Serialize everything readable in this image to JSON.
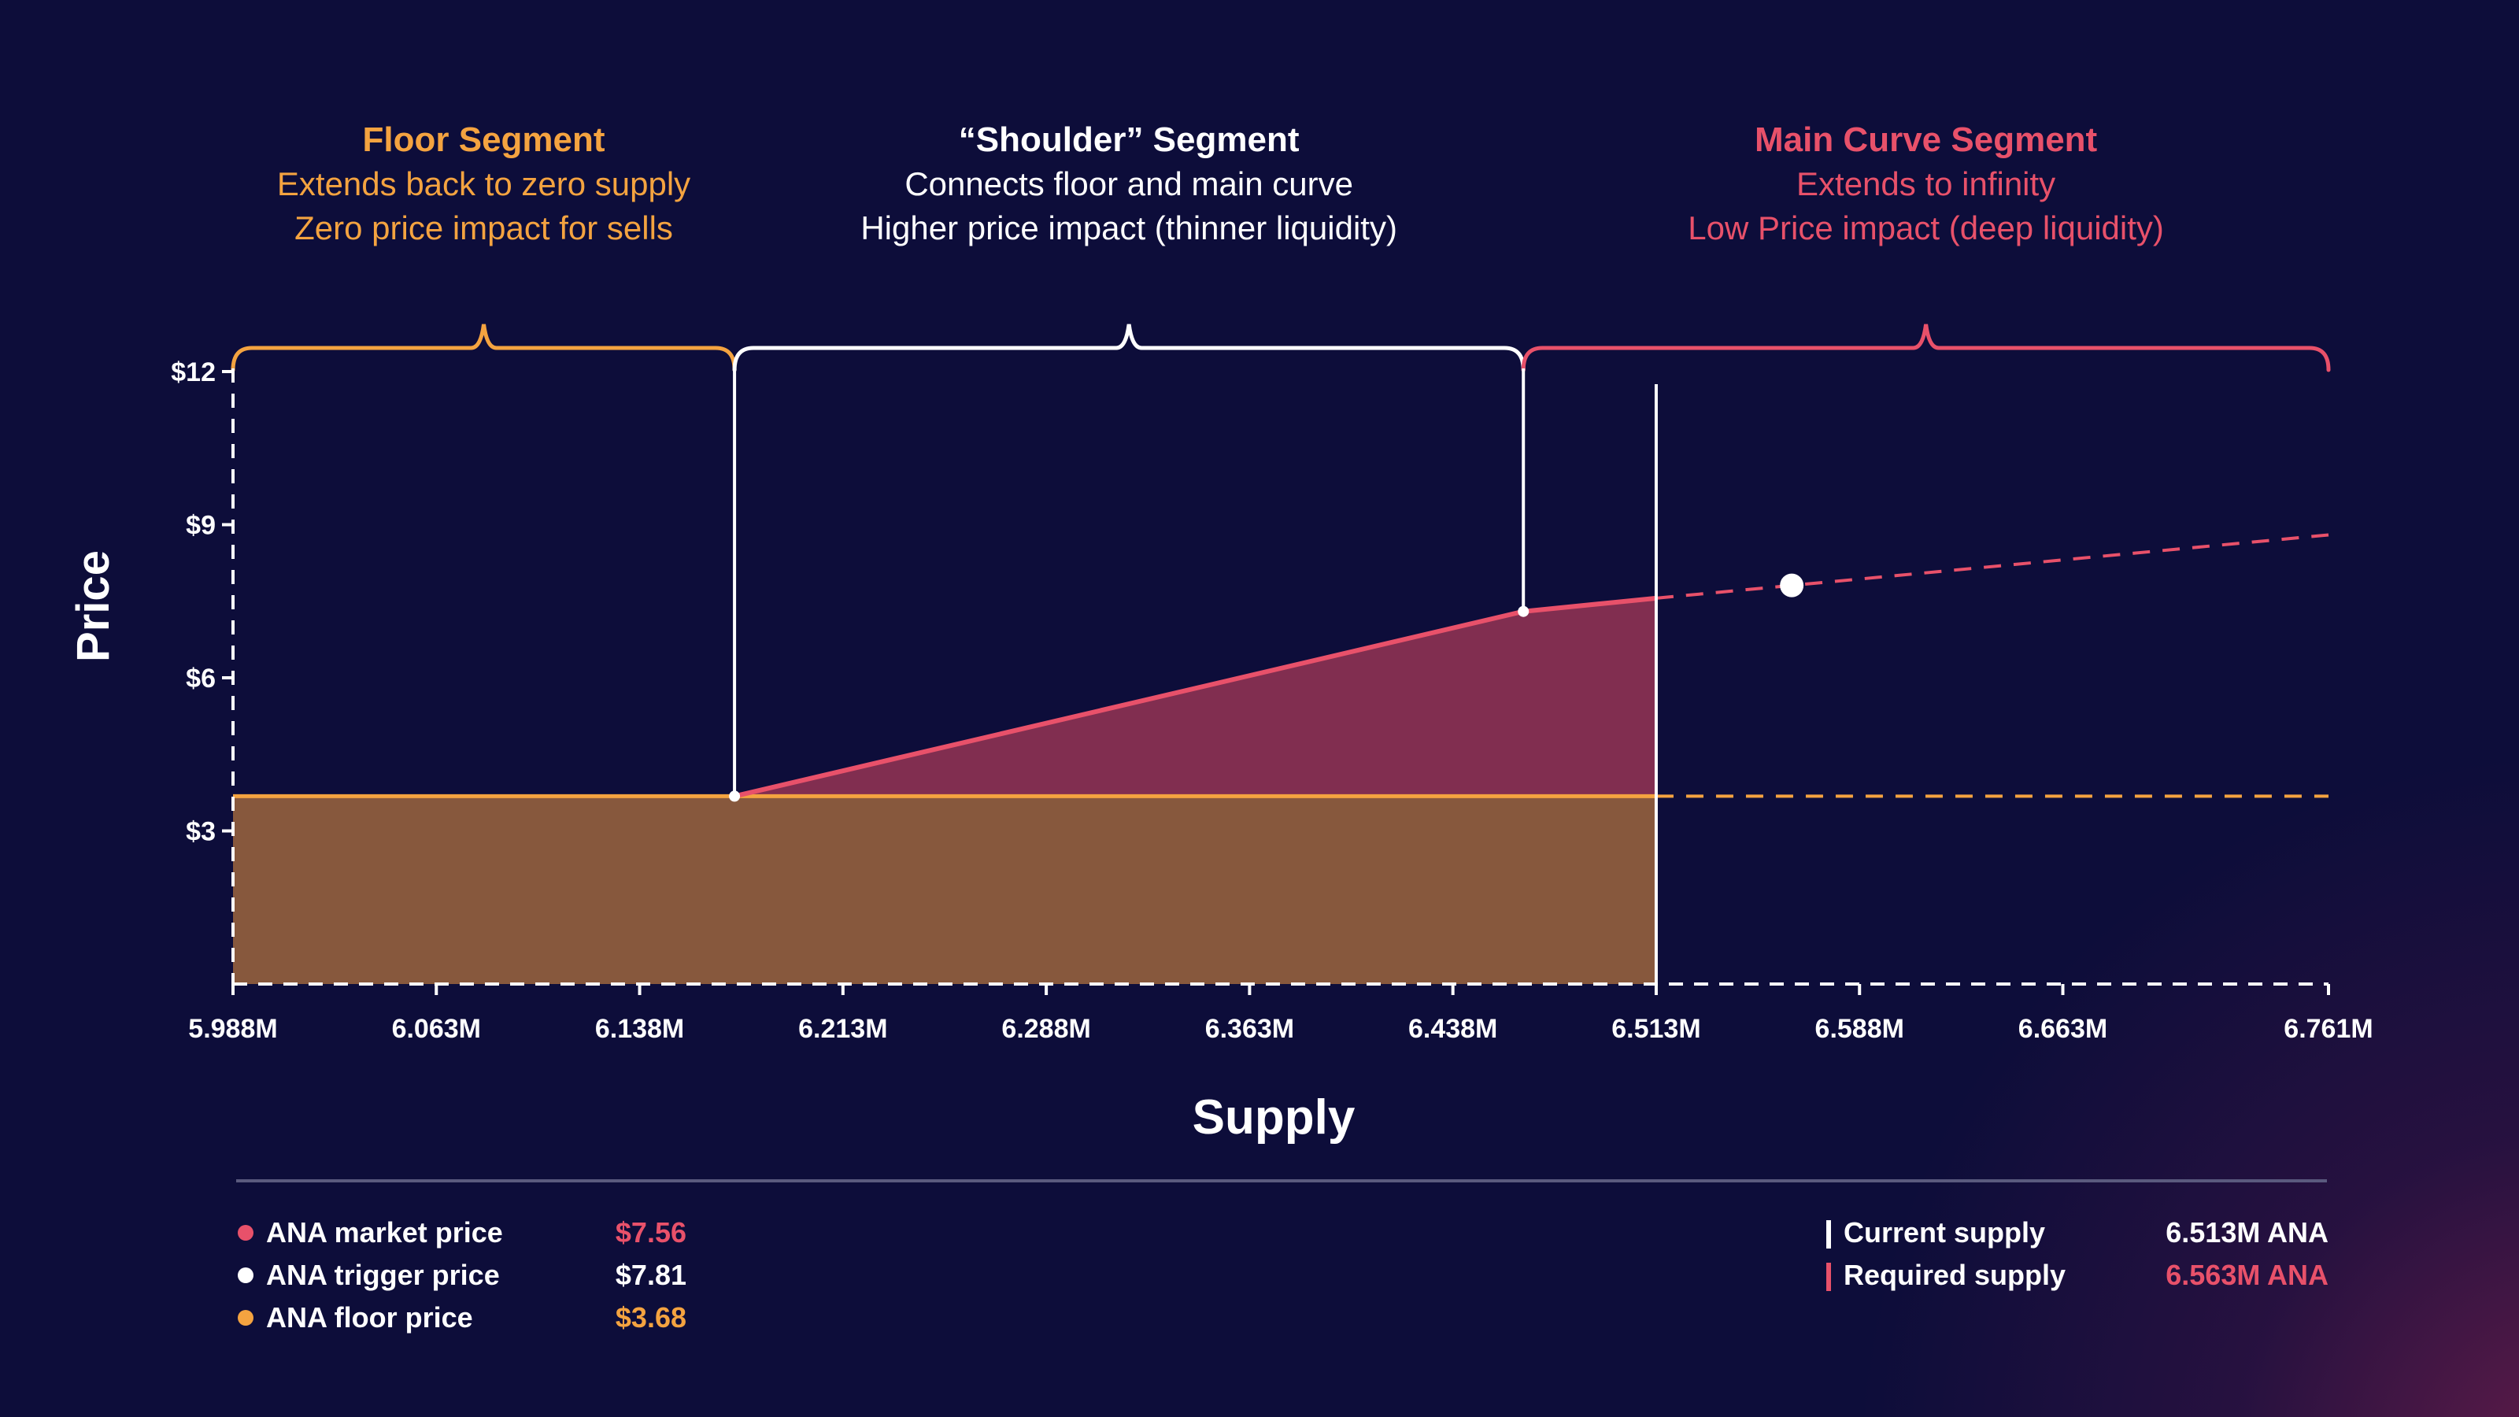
{
  "chart_data": {
    "type": "area",
    "title": "",
    "xlabel": "Supply",
    "ylabel": "Price",
    "x_ticks": [
      "5.988M",
      "6.063M",
      "6.138M",
      "6.213M",
      "6.288M",
      "6.363M",
      "6.438M",
      "6.513M",
      "6.588M",
      "6.663M",
      "6.761M"
    ],
    "x_tick_values": [
      5.988,
      6.063,
      6.138,
      6.213,
      6.288,
      6.363,
      6.438,
      6.513,
      6.588,
      6.663,
      6.761
    ],
    "y_ticks": [
      "$3",
      "$6",
      "$9",
      "$12"
    ],
    "y_tick_values": [
      3,
      6,
      9,
      12
    ],
    "xlim": [
      5.988,
      6.761
    ],
    "ylim": [
      0,
      12
    ],
    "segments": [
      {
        "name": "Floor Segment",
        "lines": [
          "Extends back to zero supply",
          "Zero price impact for sells"
        ],
        "x_range": [
          5.988,
          6.173
        ],
        "color": "#f4a340"
      },
      {
        "name": "“Shoulder” Segment",
        "lines": [
          "Connects floor and main curve",
          "Higher price impact (thinner liquidity)"
        ],
        "x_range": [
          6.173,
          6.464
        ],
        "color": "#ffffff"
      },
      {
        "name": "Main Curve Segment",
        "lines": [
          "Extends to infinity",
          "Low Price impact (deep liquidity)"
        ],
        "x_range": [
          6.464,
          6.761
        ],
        "color": "#e8516a"
      }
    ],
    "series": [
      {
        "name": "ANA floor price",
        "color": "#f4a340",
        "x": [
          5.988,
          6.513
        ],
        "y": [
          3.68,
          3.68
        ],
        "dashed_extension": {
          "x": [
            6.513,
            6.761
          ],
          "y": [
            3.68,
            3.68
          ]
        }
      },
      {
        "name": "ANA market price",
        "color": "#e8516a",
        "x": [
          6.173,
          6.464,
          6.513
        ],
        "y": [
          3.68,
          7.3,
          7.56
        ],
        "dashed_extension": {
          "x": [
            6.513,
            6.761
          ],
          "y": [
            7.56,
            8.8
          ]
        }
      }
    ],
    "trigger_point": {
      "x": 6.563,
      "y": 7.81
    },
    "breakpoints": [
      {
        "x": 6.173,
        "y": 3.68
      },
      {
        "x": 6.464,
        "y": 7.3
      }
    ],
    "current_supply_x": 6.513
  },
  "legend_left": [
    {
      "label": "ANA market price",
      "value": "$7.56",
      "color": "#e8516a",
      "value_color": "#e8516a"
    },
    {
      "label": "ANA trigger price",
      "value": "$7.81",
      "color": "#ffffff",
      "value_color": "#ffffff"
    },
    {
      "label": "ANA floor price",
      "value": "$3.68",
      "color": "#f4a340",
      "value_color": "#f4a340"
    }
  ],
  "legend_right": [
    {
      "label": "Current supply",
      "value": "6.513M ANA",
      "color": "#ffffff",
      "value_color": "#ffffff"
    },
    {
      "label": "Required supply",
      "value": "6.563M ANA",
      "color": "#e8516a",
      "value_color": "#e8516a"
    }
  ],
  "colors": {
    "background": "#0d0d3a",
    "floor": "#f4a340",
    "floor_fill": "#87583d",
    "market": "#e8516a",
    "market_fill": "#812e50",
    "white": "#ffffff",
    "divider": "#5a5a7e"
  }
}
